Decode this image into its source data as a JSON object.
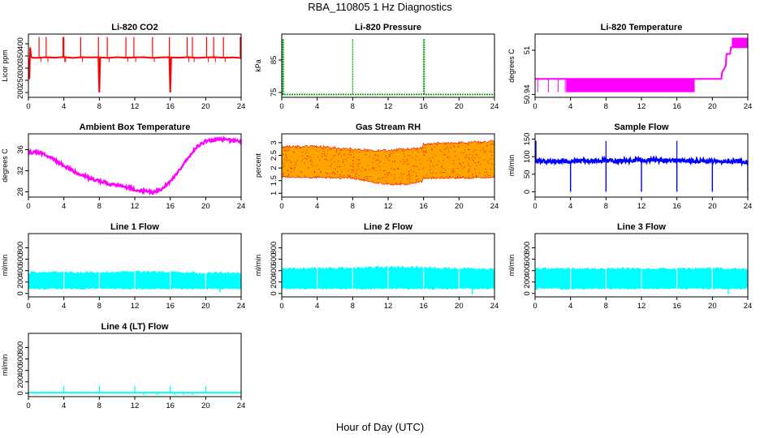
{
  "figure": {
    "title": "RBA_110805  1 Hz Diagnostics",
    "xlabel": "Hour of Day (UTC)"
  },
  "chart_data": [
    {
      "type": "line",
      "title": "Li-820 CO2",
      "ylabel": "Licor ppm",
      "color": "#ff0000",
      "xlim": [
        0,
        24
      ],
      "ylim": [
        180,
        440
      ],
      "x_ticks": [
        0,
        4,
        8,
        12,
        16,
        20,
        24
      ],
      "y_ticks": [
        200,
        250,
        300,
        350,
        400
      ],
      "series": [
        {
          "x": [
            0,
            0.1,
            0.2,
            0.3,
            0.5,
            1.0,
            2.0,
            3.0,
            4.0,
            5.0,
            6.0,
            7.0,
            7.9,
            8.0,
            8.1,
            9.0,
            10.0,
            11.0,
            12.0,
            13.0,
            14.0,
            15.0,
            15.9,
            16.0,
            16.1,
            17.0,
            18.0,
            19.0,
            20.0,
            21.0,
            22.0,
            23.0,
            23.9,
            24.0
          ],
          "y": [
            340,
            255,
            385,
            345,
            343,
            342,
            345,
            343,
            346,
            342,
            345,
            344,
            345,
            200,
            344,
            342,
            345,
            343,
            344,
            345,
            342,
            344,
            345,
            200,
            344,
            343,
            345,
            342,
            344,
            345,
            343,
            344,
            342,
            340
          ]
        }
      ],
      "spikes": {
        "x": [
          1.2,
          2.0,
          3.9,
          4.0,
          5.9,
          7.9,
          8.9,
          11.0,
          11.9,
          14.0,
          15.9,
          17.9,
          18.5,
          20.1,
          20.9,
          22.0,
          23.9
        ],
        "upper": 428,
        "lower_scatter": 325
      }
    },
    {
      "type": "line",
      "title": "Li-820 Pressure",
      "ylabel": "kPa",
      "color": "#00a000",
      "xlim": [
        0,
        24
      ],
      "ylim": [
        73.5,
        93
      ],
      "x_ticks": [
        0,
        4,
        8,
        12,
        16,
        20,
        24
      ],
      "y_ticks": [
        75,
        85
      ],
      "series": [
        {
          "x": [
            0,
            24
          ],
          "y": [
            74.4,
            74.4
          ]
        }
      ],
      "spikes": {
        "x": [
          0.1,
          0.2,
          8.0,
          16.0,
          16.1,
          24.0
        ],
        "upper": 91.5
      }
    },
    {
      "type": "line",
      "title": "Li-820 Temperature",
      "ylabel": "degrees C",
      "color": "#ff00ff",
      "xlim": [
        0,
        24
      ],
      "ylim": [
        50.936,
        51.022
      ],
      "x_ticks": [
        0,
        4,
        8,
        12,
        16,
        20,
        24
      ],
      "y_ticks": [
        50.94,
        51.0
      ],
      "series": [
        {
          "x": [
            0,
            3.5,
            18.0,
            21.0,
            21.1,
            21.5,
            21.6,
            22.0,
            22.1,
            24.0
          ],
          "y": [
            50.961,
            50.961,
            50.961,
            50.961,
            50.97,
            50.978,
            50.995,
            50.995,
            51.004,
            51.004
          ]
        }
      ],
      "bands": [
        {
          "x0": 3.5,
          "x1": 18.0,
          "y0": 50.943,
          "y1": 50.961
        },
        {
          "x0": 22.2,
          "x1": 24.0,
          "y0": 51.004,
          "y1": 51.017
        }
      ],
      "drops": {
        "x": [
          0.3,
          1.5,
          2.6,
          3.4
        ],
        "y0": 50.961,
        "y1": 50.943
      }
    },
    {
      "type": "line",
      "title": "Ambient Box Temperature",
      "ylabel": "degrees C",
      "color": "#ff00ff",
      "xlim": [
        0,
        24
      ],
      "ylim": [
        27.0,
        39.0
      ],
      "x_ticks": [
        0,
        4,
        8,
        12,
        16,
        20,
        24
      ],
      "y_ticks": [
        28,
        32,
        36
      ],
      "series": [
        {
          "x": [
            0,
            1,
            2,
            3,
            4,
            5,
            6,
            7,
            8,
            9,
            10,
            11,
            12,
            13,
            14,
            15,
            16,
            17,
            18,
            19,
            20,
            21,
            22,
            23,
            24
          ],
          "y": [
            35.5,
            35.5,
            35.0,
            34.0,
            33.0,
            32.0,
            31.2,
            30.5,
            30.0,
            29.6,
            29.2,
            28.9,
            28.5,
            28.1,
            27.9,
            28.5,
            30.0,
            32.0,
            34.5,
            36.5,
            37.6,
            37.9,
            37.9,
            37.8,
            37.5
          ]
        }
      ],
      "noise": 0.6
    },
    {
      "type": "area",
      "title": "Gas Stream RH",
      "ylabel": "percent",
      "color": "#ff0000",
      "fill_color": "#ffa500",
      "xlim": [
        0,
        24
      ],
      "ylim": [
        0.85,
        3.35
      ],
      "x_ticks": [
        0,
        4,
        8,
        12,
        16,
        20,
        24
      ],
      "y_ticks": [
        1.0,
        1.5,
        2.0,
        2.5,
        3.0
      ],
      "series": [
        {
          "name": "upper",
          "x": [
            0,
            4,
            8,
            10,
            12,
            14,
            15.8,
            16.0,
            20,
            24
          ],
          "y": [
            2.85,
            2.85,
            2.75,
            2.7,
            2.7,
            2.75,
            2.8,
            2.95,
            3.0,
            3.05
          ]
        },
        {
          "name": "lower",
          "x": [
            0,
            4,
            8,
            10,
            12,
            14,
            15.8,
            16.0,
            20,
            24
          ],
          "y": [
            1.65,
            1.62,
            1.6,
            1.45,
            1.35,
            1.35,
            1.45,
            1.6,
            1.6,
            1.62
          ]
        }
      ]
    },
    {
      "type": "line",
      "title": "Sample Flow",
      "ylabel": "ml/min",
      "color": "#0000ff",
      "xlim": [
        0,
        24
      ],
      "ylim": [
        -15,
        165
      ],
      "x_ticks": [
        0,
        4,
        8,
        12,
        16,
        20,
        24
      ],
      "y_ticks": [
        0,
        50,
        100,
        150
      ],
      "series": [
        {
          "x": [
            0,
            2,
            4,
            6,
            8,
            10,
            12,
            14,
            16,
            18,
            20,
            22,
            24
          ],
          "y": [
            88,
            87,
            88,
            88,
            89,
            89,
            90,
            90,
            89,
            88,
            87,
            87,
            86
          ]
        }
      ],
      "spikes": {
        "x": [
          0.1,
          8.0,
          16.0
        ],
        "upper": 145
      },
      "dips": {
        "x": [
          4.0,
          8.0,
          12.0,
          16.0,
          20.0,
          24.0
        ],
        "lower": 0
      },
      "noise": 12
    },
    {
      "type": "area",
      "title": "Line 1 Flow",
      "ylabel": "ml/min",
      "color": "#00ffff",
      "xlim": [
        0,
        24
      ],
      "ylim": [
        -60,
        1050
      ],
      "x_ticks": [
        0,
        4,
        8,
        12,
        16,
        20,
        24
      ],
      "y_ticks": [
        0,
        200,
        400,
        600,
        800
      ],
      "series": [
        {
          "name": "upper",
          "x": [
            0,
            4,
            8,
            12,
            16,
            20,
            24
          ],
          "y": [
            370,
            375,
            370,
            385,
            380,
            360,
            360
          ]
        },
        {
          "name": "lower",
          "x": [
            0,
            4,
            8,
            12,
            16,
            20,
            24
          ],
          "y": [
            80,
            80,
            80,
            80,
            80,
            80,
            80
          ]
        }
      ],
      "gaps": [
        4.0,
        8.0,
        12.0,
        16.0,
        20.0
      ],
      "dips": {
        "x": [
          21.6
        ],
        "lower": 20
      }
    },
    {
      "type": "area",
      "title": "Line 2 Flow",
      "ylabel": "ml/min",
      "color": "#00ffff",
      "xlim": [
        0,
        24
      ],
      "ylim": [
        -60,
        1050
      ],
      "x_ticks": [
        0,
        4,
        8,
        12,
        16,
        20,
        24
      ],
      "y_ticks": [
        0,
        200,
        400,
        600,
        800
      ],
      "series": [
        {
          "name": "upper",
          "x": [
            0,
            4,
            8,
            12,
            16,
            20,
            24
          ],
          "y": [
            440,
            445,
            450,
            470,
            460,
            440,
            430
          ]
        },
        {
          "name": "lower",
          "x": [
            0,
            4,
            8,
            12,
            16,
            20,
            24
          ],
          "y": [
            80,
            80,
            80,
            80,
            80,
            80,
            80
          ]
        }
      ],
      "gaps": [
        4.0,
        8.0,
        12.0,
        16.0,
        20.0
      ],
      "dips": {
        "x": [
          21.5
        ],
        "lower": -20
      }
    },
    {
      "type": "area",
      "title": "Line 3 Flow",
      "ylabel": "ml/min",
      "color": "#00ffff",
      "xlim": [
        0,
        24
      ],
      "ylim": [
        -60,
        1050
      ],
      "x_ticks": [
        0,
        4,
        8,
        12,
        16,
        20,
        24
      ],
      "y_ticks": [
        0,
        200,
        400,
        600,
        800
      ],
      "series": [
        {
          "name": "upper",
          "x": [
            0,
            4,
            8,
            12,
            16,
            20,
            24
          ],
          "y": [
            440,
            440,
            440,
            440,
            440,
            440,
            440
          ]
        },
        {
          "name": "lower",
          "x": [
            0,
            4,
            8,
            12,
            16,
            20,
            24
          ],
          "y": [
            80,
            80,
            80,
            80,
            80,
            80,
            80
          ]
        }
      ],
      "gaps": [
        4.0,
        8.0,
        12.0,
        16.0,
        20.0
      ],
      "dips": {
        "x": [
          21.8
        ],
        "lower": -20
      }
    },
    {
      "type": "line",
      "title": "Line 4 (LT) Flow",
      "ylabel": "ml/min",
      "color": "#00ffff",
      "xlim": [
        0,
        24
      ],
      "ylim": [
        -60,
        1050
      ],
      "x_ticks": [
        0,
        4,
        8,
        12,
        16,
        20,
        24
      ],
      "y_ticks": [
        0,
        200,
        400,
        600,
        800
      ],
      "series": [
        {
          "x": [
            0,
            4,
            8,
            12,
            16,
            20,
            24
          ],
          "y": [
            10,
            10,
            10,
            10,
            10,
            10,
            10
          ]
        }
      ],
      "spikes": {
        "x": [
          4.0,
          8.0,
          12.0,
          16.0,
          20.0,
          24.0
        ],
        "upper": 130
      },
      "dips": {
        "x": [
          13.0,
          14.5,
          16.5,
          17.5,
          18.5
        ],
        "lower": -30
      }
    }
  ]
}
